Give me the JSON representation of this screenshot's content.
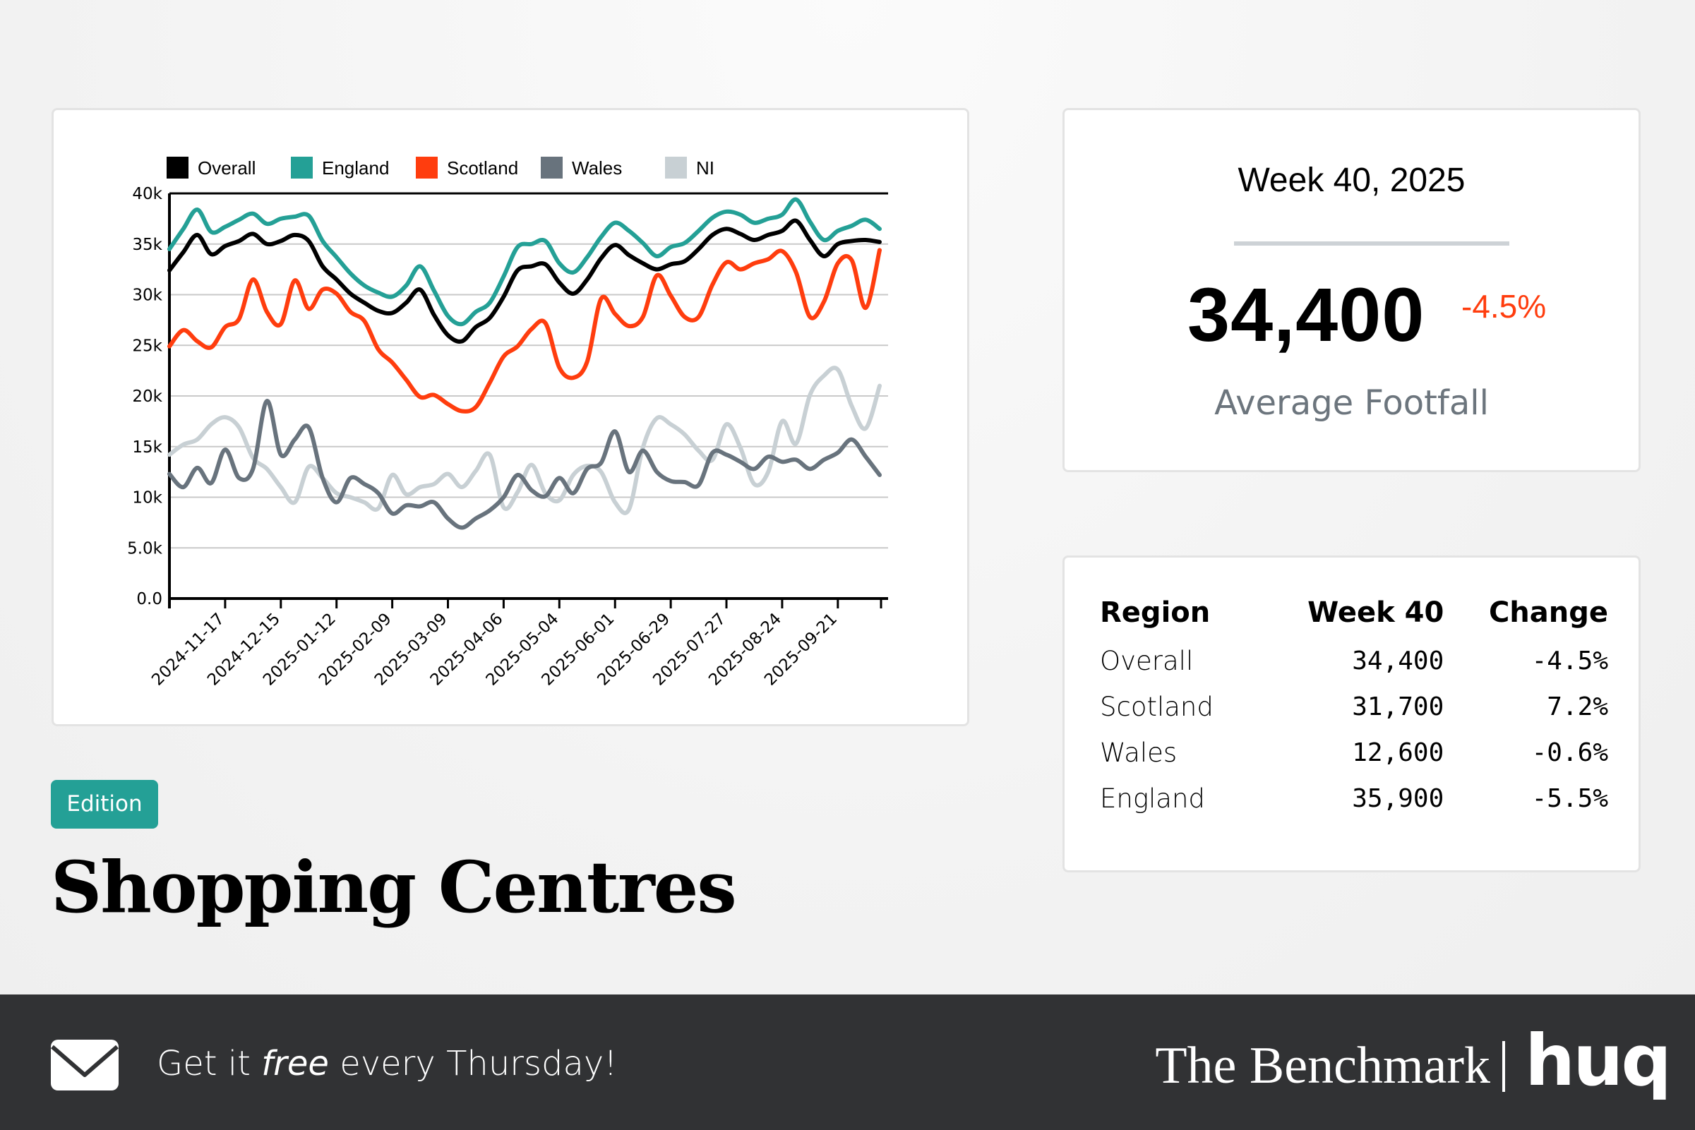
{
  "chart_data": {
    "type": "line",
    "x": [
      "2024-10-20",
      "2024-10-27",
      "2024-11-03",
      "2024-11-10",
      "2024-11-17",
      "2024-11-24",
      "2024-12-01",
      "2024-12-08",
      "2024-12-15",
      "2024-12-22",
      "2024-12-29",
      "2025-01-05",
      "2025-01-12",
      "2025-01-19",
      "2025-01-26",
      "2025-02-02",
      "2025-02-09",
      "2025-02-16",
      "2025-02-23",
      "2025-03-02",
      "2025-03-09",
      "2025-03-16",
      "2025-03-23",
      "2025-03-30",
      "2025-04-06",
      "2025-04-13",
      "2025-04-20",
      "2025-04-27",
      "2025-05-04",
      "2025-05-11",
      "2025-05-18",
      "2025-05-25",
      "2025-06-01",
      "2025-06-08",
      "2025-06-15",
      "2025-06-22",
      "2025-06-29",
      "2025-07-06",
      "2025-07-13",
      "2025-07-20",
      "2025-07-27",
      "2025-08-03",
      "2025-08-10",
      "2025-08-17",
      "2025-08-24",
      "2025-08-31",
      "2025-09-07",
      "2025-09-14",
      "2025-09-21",
      "2025-09-28",
      "2025-10-05",
      "2025-10-12"
    ],
    "xticks": [
      "2024-11-17",
      "2024-12-15",
      "2025-01-12",
      "2025-02-09",
      "2025-03-09",
      "2025-04-06",
      "2025-05-04",
      "2025-06-01",
      "2025-06-29",
      "2025-07-27",
      "2025-08-24",
      "2025-09-21"
    ],
    "yticks": [
      0,
      5000,
      10000,
      15000,
      20000,
      25000,
      30000,
      35000,
      40000
    ],
    "ytick_labels": [
      "0.0",
      "5.0k",
      "10k",
      "15k",
      "20k",
      "25k",
      "30k",
      "35k",
      "40k"
    ],
    "ylim": [
      0,
      40000
    ],
    "grid": "horizontal",
    "legend": "top",
    "series": [
      {
        "name": "Overall",
        "color": "#000000",
        "values": [
          32400,
          34200,
          35900,
          34000,
          34800,
          35300,
          36000,
          35000,
          35300,
          35900,
          35300,
          32800,
          31500,
          30100,
          29200,
          28400,
          28200,
          29200,
          30500,
          28000,
          26000,
          25400,
          26800,
          27700,
          29800,
          32400,
          32800,
          33000,
          31200,
          30100,
          31500,
          33600,
          34900,
          33900,
          33100,
          32500,
          33000,
          33300,
          34500,
          35900,
          36500,
          36000,
          35400,
          35900,
          36300,
          37300,
          35400,
          33800,
          35000,
          35300,
          35400,
          35200
        ]
      },
      {
        "name": "England",
        "color": "#24a096",
        "values": [
          34500,
          36500,
          38400,
          36200,
          36700,
          37400,
          38000,
          37000,
          37500,
          37700,
          37800,
          35300,
          33700,
          32100,
          30900,
          30200,
          29800,
          30900,
          32800,
          30400,
          27900,
          27100,
          28300,
          29200,
          31800,
          34700,
          35000,
          35300,
          33100,
          32200,
          33700,
          35700,
          37100,
          36300,
          35100,
          33800,
          34700,
          35100,
          36300,
          37600,
          38200,
          37900,
          37100,
          37500,
          37900,
          39400,
          37200,
          35400,
          36300,
          36800,
          37400,
          36500
        ]
      },
      {
        "name": "Scotland",
        "color": "#ff3d0e",
        "values": [
          24900,
          26500,
          25400,
          24800,
          26800,
          27600,
          31500,
          28300,
          27100,
          31400,
          28600,
          30500,
          30100,
          28300,
          27400,
          24600,
          23300,
          21600,
          19900,
          20100,
          19200,
          18500,
          18900,
          21300,
          23900,
          24900,
          26600,
          27200,
          22800,
          21800,
          23400,
          29600,
          28100,
          26900,
          27800,
          31900,
          29900,
          27800,
          27800,
          31000,
          33200,
          32500,
          33100,
          33500,
          34300,
          32200,
          27800,
          29300,
          33100,
          33400,
          28700,
          34400
        ]
      },
      {
        "name": "Wales",
        "color": "#68737d",
        "values": [
          12300,
          11000,
          12900,
          11400,
          14700,
          11900,
          12800,
          19500,
          14200,
          15700,
          16900,
          11900,
          9500,
          11900,
          11300,
          10400,
          8400,
          9200,
          9100,
          9500,
          7900,
          7000,
          7900,
          8700,
          10000,
          12200,
          10700,
          10100,
          11900,
          10400,
          12800,
          13400,
          16500,
          12500,
          14600,
          12500,
          11600,
          11500,
          11200,
          14400,
          14200,
          13500,
          12800,
          14000,
          13500,
          13700,
          12800,
          13700,
          14400,
          15700,
          14000,
          12200
        ]
      },
      {
        "name": "NI",
        "color": "#c8d0d4",
        "values": [
          14200,
          15200,
          15700,
          17200,
          17900,
          16900,
          13900,
          12800,
          11000,
          9500,
          13000,
          11900,
          10400,
          10000,
          9500,
          8900,
          12200,
          10300,
          11000,
          11300,
          12300,
          11000,
          12600,
          14200,
          9000,
          10500,
          13200,
          10400,
          9700,
          12200,
          13100,
          12500,
          9500,
          8800,
          14900,
          17800,
          17200,
          16200,
          14600,
          13700,
          17200,
          14900,
          11300,
          12500,
          17500,
          15300,
          20100,
          22000,
          22600,
          19000,
          16800,
          21000
        ]
      }
    ]
  },
  "stat": {
    "week_title": "Week 40, 2025",
    "value": "34,400",
    "change": "-4.5%",
    "label": "Average Footfall",
    "change_color": "#ff3d0e"
  },
  "table": {
    "headers": [
      "Region",
      "Week 40",
      "Change"
    ],
    "rows": [
      {
        "region": "Overall",
        "value": "34,400",
        "change": "-4.5%"
      },
      {
        "region": "Scotland",
        "value": "31,700",
        "change": "7.2%"
      },
      {
        "region": "Wales",
        "value": "12,600",
        "change": "-0.6%"
      },
      {
        "region": "England",
        "value": "35,900",
        "change": "-5.5%"
      }
    ]
  },
  "badge": "Edition",
  "title": "Shopping Centres",
  "footer": {
    "cta_before": "Get it",
    "cta_em": "free",
    "cta_after": "every Thursday!",
    "brand": "The Benchmark",
    "logo": "huq",
    "icon": "envelope-icon"
  }
}
